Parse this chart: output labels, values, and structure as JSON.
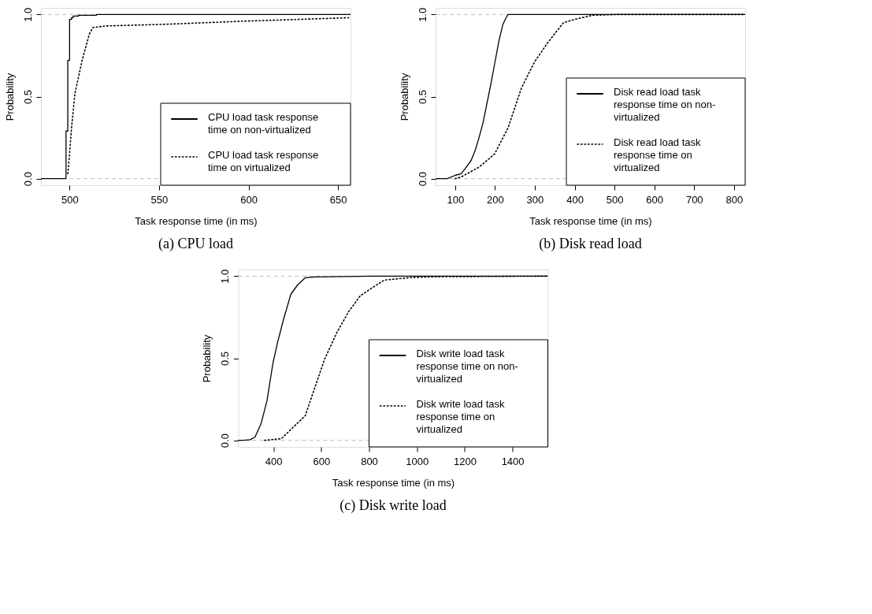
{
  "chart_data": [
    {
      "type": "line",
      "title": "(a) CPU load",
      "xlabel": "Task response time (in ms)",
      "ylabel": "Probability",
      "xlim": [
        484,
        657
      ],
      "xticks": [
        500,
        550,
        600,
        650
      ],
      "ylim": [
        -0.04,
        1.04
      ],
      "yticks": [
        {
          "value": 0,
          "label": "0.0"
        },
        {
          "value": 0.5,
          "label": "0.5"
        },
        {
          "value": 1,
          "label": "1.0"
        }
      ],
      "grid": false,
      "legend": "bottom right",
      "ref_lines": [
        {
          "axis": "y",
          "value": 0,
          "color": "#bbbbbb",
          "line_style": "dashed"
        },
        {
          "axis": "y",
          "value": 1,
          "color": "#bbbbbb",
          "line_style": "dashed"
        }
      ],
      "series": [
        {
          "name": "CPU load task response time on non-virtualized",
          "type": "step",
          "color": "#000000",
          "line_style": "solid",
          "x": [
            484,
            498,
            499,
            500,
            501,
            502,
            505,
            515,
            657
          ],
          "values": [
            0,
            0.29,
            0.72,
            0.97,
            0.98,
            0.99,
            0.995,
            1,
            1
          ]
        },
        {
          "name": "CPU load task response time on virtualized",
          "type": "line",
          "color": "#000000",
          "line_style": "dotted",
          "x": [
            499,
            500,
            501,
            503,
            505,
            507,
            509,
            511,
            513,
            520,
            553,
            600,
            656
          ],
          "values": [
            0.03,
            0.15,
            0.3,
            0.52,
            0.62,
            0.72,
            0.8,
            0.88,
            0.92,
            0.93,
            0.94,
            0.96,
            0.98
          ]
        }
      ]
    },
    {
      "type": "line",
      "title": "(b) Disk read load",
      "xlabel": "Task response time (in ms)",
      "ylabel": "Probability",
      "xlim": [
        51,
        828
      ],
      "xticks": [
        100,
        200,
        300,
        400,
        500,
        600,
        700,
        800
      ],
      "ylim": [
        -0.04,
        1.04
      ],
      "yticks": [
        {
          "value": 0,
          "label": "0.0"
        },
        {
          "value": 0.5,
          "label": "0.5"
        },
        {
          "value": 1,
          "label": "1.0"
        }
      ],
      "grid": false,
      "legend": "bottom right",
      "ref_lines": [
        {
          "axis": "y",
          "value": 0,
          "color": "#bbbbbb",
          "line_style": "dashed"
        },
        {
          "axis": "y",
          "value": 1,
          "color": "#bbbbbb",
          "line_style": "dashed"
        }
      ],
      "series": [
        {
          "name": "Disk read load task response time on non-virtualized",
          "type": "line",
          "color": "#000000",
          "line_style": "solid",
          "x": [
            51,
            80,
            100,
            115,
            125,
            140,
            150,
            160,
            170,
            180,
            190,
            200,
            210,
            220,
            228,
            233,
            828
          ],
          "values": [
            0,
            0,
            0.02,
            0.03,
            0.06,
            0.11,
            0.17,
            0.25,
            0.34,
            0.46,
            0.58,
            0.71,
            0.84,
            0.94,
            0.98,
            1,
            1
          ]
        },
        {
          "name": "Disk read load task response time on virtualized",
          "type": "line",
          "color": "#000000",
          "line_style": "dotted",
          "x": [
            100,
            115,
            160,
            199,
            233,
            266,
            299,
            333,
            372,
            400,
            445,
            511,
            828
          ],
          "values": [
            0,
            0.01,
            0.07,
            0.15,
            0.31,
            0.55,
            0.71,
            0.83,
            0.95,
            0.97,
            0.995,
            1,
            1
          ]
        }
      ]
    },
    {
      "type": "line",
      "title": "(c) Disk write load",
      "xlabel": "Task response time (in ms)",
      "ylabel": "Probability",
      "xlim": [
        253,
        1548
      ],
      "xticks": [
        400,
        600,
        800,
        1000,
        1200,
        1400
      ],
      "ylim": [
        -0.04,
        1.04
      ],
      "yticks": [
        {
          "value": 0,
          "label": "0.0"
        },
        {
          "value": 0.5,
          "label": "0.5"
        },
        {
          "value": 1,
          "label": "1.0"
        }
      ],
      "grid": false,
      "legend": "bottom right",
      "ref_lines": [
        {
          "axis": "y",
          "value": 0,
          "color": "#bbbbbb",
          "line_style": "dashed"
        },
        {
          "axis": "y",
          "value": 1,
          "color": "#bbbbbb",
          "line_style": "dashed"
        }
      ],
      "series": [
        {
          "name": "Disk write load task response time on non-virtualized",
          "type": "line",
          "color": "#000000",
          "line_style": "solid",
          "x": [
            253,
            273,
            303,
            323,
            348,
            373,
            398,
            418,
            443,
            473,
            503,
            533,
            573,
            814,
            1548
          ],
          "values": [
            0,
            0,
            0.004,
            0.02,
            0.1,
            0.24,
            0.47,
            0.6,
            0.74,
            0.89,
            0.95,
            0.99,
            0.995,
            1,
            1
          ]
        },
        {
          "name": "Disk write load task response time on virtualized",
          "type": "line",
          "color": "#000000",
          "line_style": "dotted",
          "x": [
            363,
            433,
            483,
            533,
            573,
            613,
            663,
            713,
            763,
            814,
            864,
            964,
            1064,
            1548
          ],
          "values": [
            0,
            0.01,
            0.08,
            0.15,
            0.32,
            0.49,
            0.65,
            0.78,
            0.88,
            0.93,
            0.976,
            0.99,
            0.996,
            1
          ]
        }
      ]
    }
  ]
}
